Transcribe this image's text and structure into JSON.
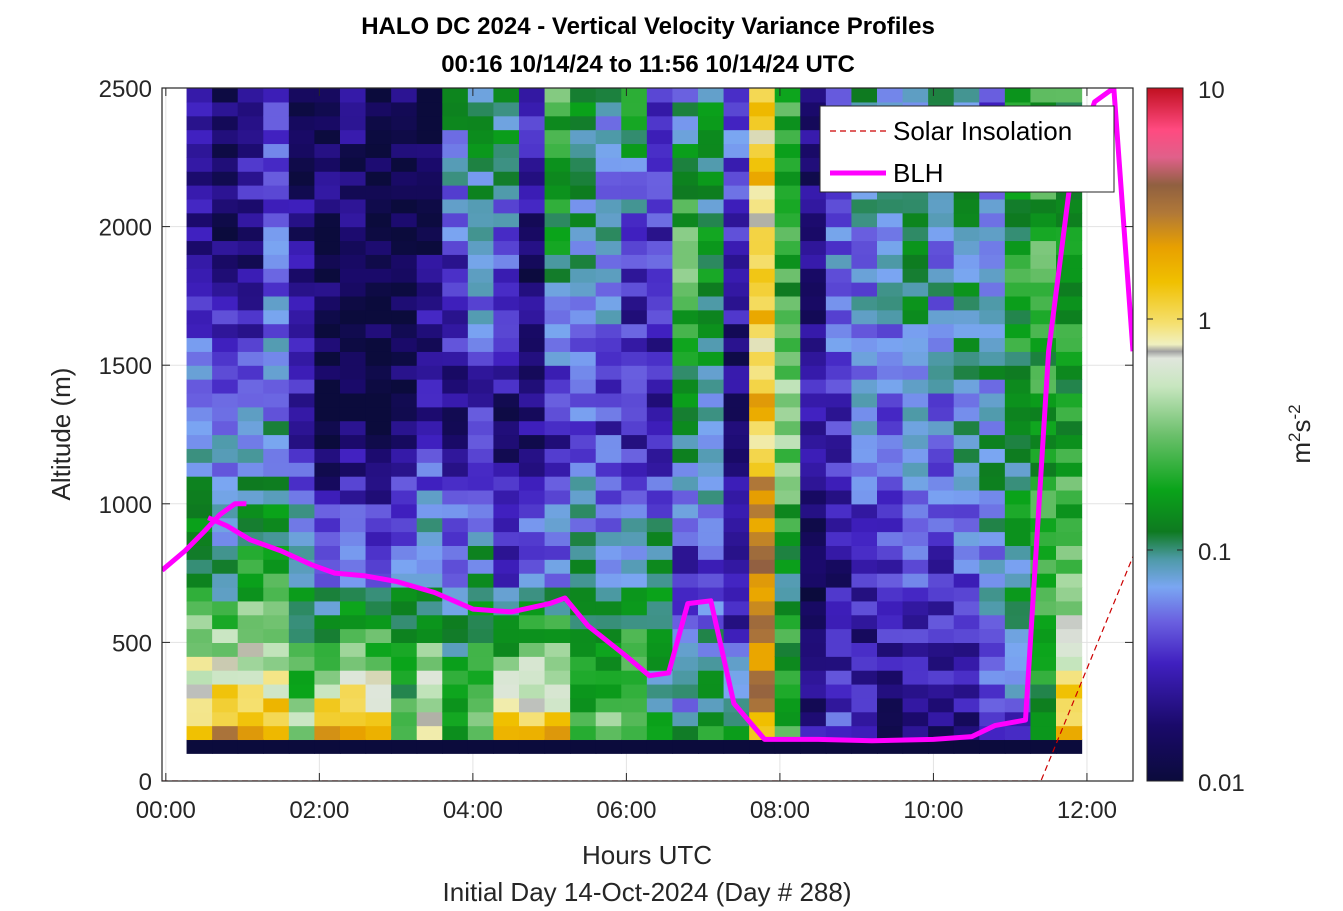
{
  "chart_data": {
    "type": "heatmap",
    "title": "HALO DC 2024 - Vertical Velocity Variance Profiles",
    "subtitle": "00:16 10/14/24 to 11:56 10/14/24  UTC",
    "xlabel": "Hours UTC",
    "xlabel2": "Initial Day 14-Oct-2024 (Day # 288)",
    "ylabel": "Altitude (m)",
    "x_range_hours": [
      -0.05,
      12.6
    ],
    "ylim": [
      0,
      2500
    ],
    "x_ticks": [
      0,
      2,
      4,
      6,
      8,
      10,
      12
    ],
    "x_tick_labels": [
      "00:00",
      "02:00",
      "04:00",
      "06:00",
      "08:00",
      "10:00",
      "12:00"
    ],
    "y_ticks": [
      0,
      500,
      1000,
      1500,
      2000,
      2500
    ],
    "y_tick_labels": [
      "0",
      "500",
      "1000",
      "1500",
      "2000",
      "2500"
    ],
    "grid": true,
    "colorbar": {
      "label": "m^2s^-2",
      "scale": "log",
      "range": [
        0.01,
        10
      ],
      "ticks": [
        0.01,
        0.1,
        1,
        10
      ],
      "tick_labels": [
        "0.01",
        "0.1",
        "1",
        "10"
      ]
    },
    "heatmap": {
      "x_start_hours": 0.27,
      "x_end_hours": 11.93,
      "n_columns": 35,
      "y_start_m": 100,
      "y_end_m": 2500,
      "n_rows": 48,
      "lowest_row_value": 0.01,
      "log10_anchor_profiles": [
        [
          -1.6,
          -1.7,
          -1.2,
          -0.9,
          0.4
        ],
        [
          -1.75,
          -1.8,
          -1.3,
          -1.0,
          0.5
        ],
        [
          -1.6,
          -1.7,
          -1.3,
          -0.8,
          0.4
        ],
        [
          -1.5,
          -1.4,
          -1.2,
          -0.8,
          0.3
        ],
        [
          -1.9,
          -1.7,
          -1.6,
          -1.0,
          -0.4
        ],
        [
          -1.8,
          -1.9,
          -1.9,
          -1.3,
          0.35
        ],
        [
          -1.7,
          -1.9,
          -1.9,
          -1.1,
          0.3
        ],
        [
          -2.0,
          -2.0,
          -1.9,
          -1.2,
          0.35
        ],
        [
          -1.9,
          -2.0,
          -1.8,
          -1.1,
          -0.6
        ],
        [
          -2.0,
          -1.8,
          -1.6,
          -1.0,
          0.0
        ],
        [
          -1.0,
          -1.5,
          -1.7,
          -1.2,
          -0.6
        ],
        [
          -1.0,
          -1.1,
          -1.6,
          -1.0,
          -0.6
        ],
        [
          -0.9,
          -1.4,
          -1.8,
          -1.4,
          0.3
        ],
        [
          -1.6,
          -1.8,
          -1.8,
          -1.2,
          0.4
        ],
        [
          -0.7,
          -0.9,
          -1.6,
          -1.2,
          0.3
        ],
        [
          -1.0,
          -1.1,
          -1.4,
          -1.1,
          -0.6
        ],
        [
          -1.2,
          -1.2,
          -1.5,
          -1.1,
          -0.5
        ],
        [
          -0.8,
          -1.5,
          -1.6,
          -1.0,
          -0.5
        ],
        [
          -1.6,
          -1.5,
          -1.7,
          -0.9,
          -1.0
        ],
        [
          -1.2,
          -0.6,
          -0.9,
          -1.6,
          -1.0
        ],
        [
          -1.0,
          -0.9,
          -1.1,
          -1.4,
          -0.8
        ],
        [
          -1.3,
          -1.6,
          -1.8,
          -1.7,
          -0.9
        ],
        [
          0.0,
          0.1,
          0.1,
          0.5,
          0.3
        ],
        [
          -0.7,
          -0.8,
          -0.5,
          -0.9,
          -0.6
        ],
        [
          -1.7,
          -1.8,
          -1.6,
          -1.9,
          -1.7
        ],
        [
          -1.4,
          -1.3,
          -1.5,
          -1.7,
          -1.4
        ],
        [
          -1.0,
          -1.3,
          -1.2,
          -1.6,
          -1.7
        ],
        [
          -1.2,
          -1.1,
          -1.4,
          -1.5,
          -1.8
        ],
        [
          -1.3,
          -1.0,
          -1.2,
          -1.4,
          -1.9
        ],
        [
          -1.0,
          -1.2,
          -1.3,
          -1.5,
          -1.8
        ],
        [
          -1.1,
          -1.0,
          -1.1,
          -1.4,
          -1.7
        ],
        [
          -1.4,
          -1.2,
          -1.1,
          -1.2,
          -1.6
        ],
        [
          -0.9,
          -0.8,
          -0.9,
          -1.0,
          -1.5
        ],
        [
          -0.8,
          -0.7,
          -0.8,
          -0.7,
          -0.8
        ],
        [
          -0.8,
          -0.7,
          -0.8,
          -0.6,
          0.3
        ]
      ]
    },
    "series": [
      {
        "name": "Solar Insolation",
        "style": "dashed",
        "color": "#cc0000",
        "x": [
          -0.05,
          11.4,
          12.6
        ],
        "y": [
          0,
          0,
          810
        ]
      },
      {
        "name": "BLH",
        "style": "solid",
        "color": "#ff00ff",
        "segments": [
          {
            "x": [
              -0.05,
              0.25,
              0.5,
              0.7,
              0.9,
              1.05
            ],
            "y": [
              760,
              830,
              900,
              960,
              1000,
              1000
            ]
          },
          {
            "x": [
              0.55,
              0.8,
              1.1,
              1.5,
              1.9,
              2.2,
              2.6,
              3.0,
              3.5,
              4.0,
              4.5,
              5.0,
              5.2,
              5.5,
              6.0,
              6.3,
              6.55,
              6.8,
              7.1,
              7.4,
              7.8,
              8.5,
              9.2,
              10.0,
              10.5,
              10.8,
              11.2,
              11.5,
              11.8,
              12.1,
              12.35,
              12.6
            ],
            "y": [
              950,
              920,
              870,
              830,
              780,
              750,
              740,
              720,
              680,
              620,
              610,
              640,
              660,
              560,
              450,
              380,
              390,
              640,
              650,
              280,
              150,
              150,
              145,
              150,
              160,
              200,
              220,
              1550,
              2200,
              2450,
              2500,
              1550
            ]
          }
        ]
      }
    ],
    "legend": {
      "placement": "top-right",
      "entries": [
        "Solar Insolation",
        "BLH"
      ]
    }
  }
}
